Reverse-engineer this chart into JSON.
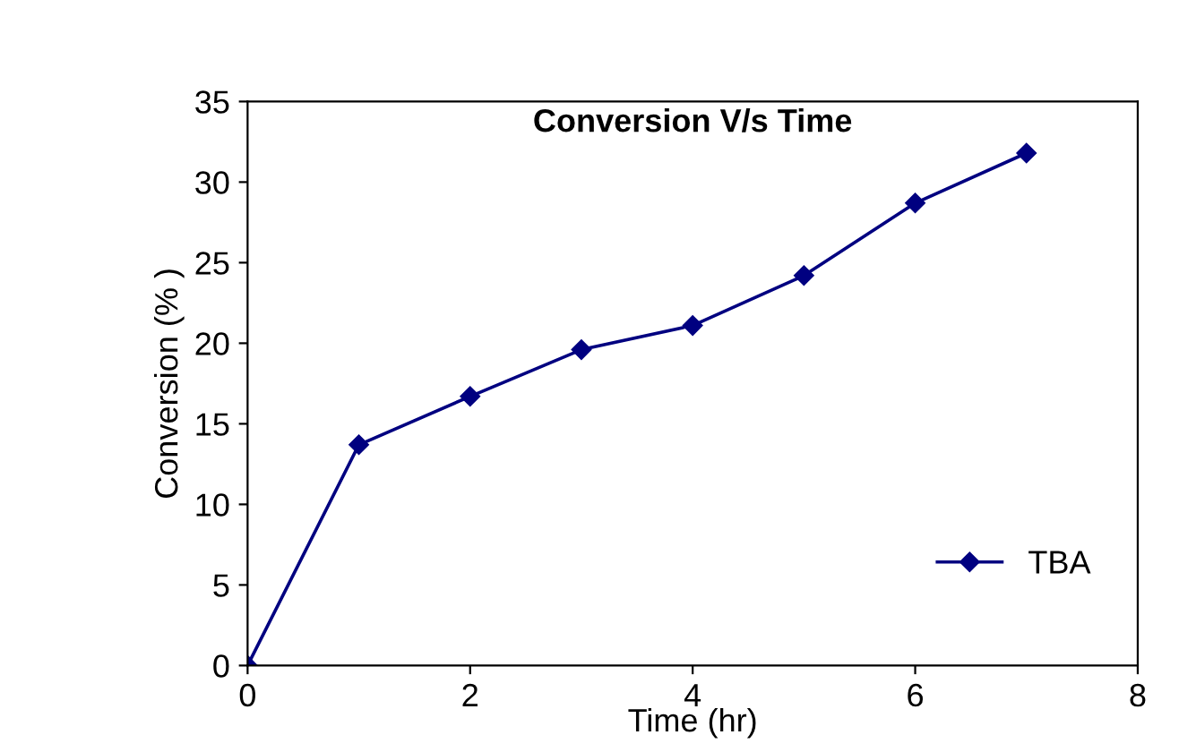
{
  "chart_data": {
    "type": "line",
    "title": "Conversion V/s Time",
    "xlabel": "Time (hr)",
    "ylabel": "Conversion (% )",
    "x": [
      0,
      1,
      2,
      3,
      4,
      5,
      6,
      7
    ],
    "series": [
      {
        "name": "TBA",
        "color": "#000080",
        "values": [
          0,
          13.7,
          16.7,
          19.6,
          21.1,
          24.2,
          28.7,
          31.8
        ]
      }
    ],
    "xlim": [
      0,
      8
    ],
    "xticks": [
      0,
      2,
      4,
      6,
      8
    ],
    "ylim": [
      0,
      35
    ],
    "yticks": [
      0,
      5,
      10,
      15,
      20,
      25,
      30,
      35
    ],
    "grid": false,
    "legend": "bottom right",
    "marker": "diamond",
    "line_style": "solid"
  }
}
